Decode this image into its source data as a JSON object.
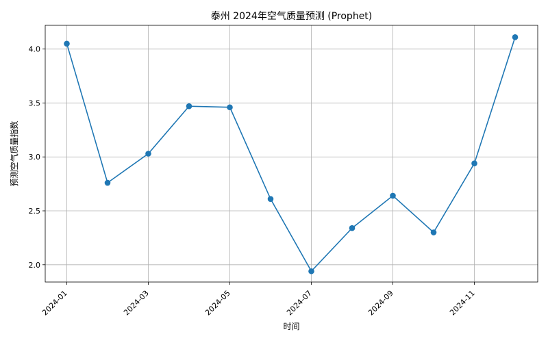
{
  "chart_data": {
    "type": "line",
    "title": "泰州 2024年空气质量预测 (Prophet)",
    "xlabel": "时间",
    "ylabel": "预测空气质量指数",
    "x": [
      "2024-01",
      "2024-02",
      "2024-03",
      "2024-04",
      "2024-05",
      "2024-06",
      "2024-07",
      "2024-08",
      "2024-09",
      "2024-10",
      "2024-11",
      "2024-12"
    ],
    "xticks": [
      "2024-01",
      "2024-03",
      "2024-05",
      "2024-07",
      "2024-09",
      "2024-11"
    ],
    "yticks": [
      "2.0",
      "2.5",
      "3.0",
      "3.5",
      "4.0"
    ],
    "ylim": [
      1.84,
      4.22
    ],
    "grid": true,
    "series": [
      {
        "values": [
          4.05,
          2.76,
          3.03,
          3.47,
          3.46,
          2.61,
          1.94,
          2.34,
          2.64,
          2.3,
          2.94,
          4.11
        ],
        "color": "#1f77b4",
        "marker": "circle"
      }
    ]
  }
}
